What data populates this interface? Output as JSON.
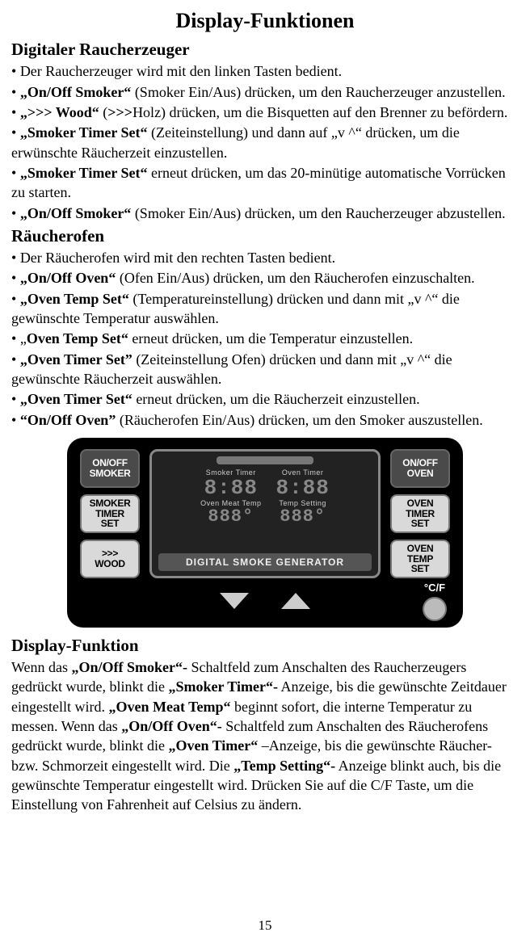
{
  "page_number": "15",
  "heading_main": "Display-Funktionen",
  "section1": {
    "title": "Digitaler Raucherzeuger",
    "bullets": [
      {
        "plain": "Der Raucherzeuger wird mit den linken Tasten bedient."
      },
      {
        "lead": "„On/Off Smoker“",
        "rest": " (Smoker Ein/Aus) drücken, um den Raucherzeuger anzustellen."
      },
      {
        "lead": "„>>> Wood“",
        "rest_a": " (",
        "bold_mid": ">>>",
        "rest_b": "Holz) drücken, um die Bisquetten auf den Brenner zu befördern."
      },
      {
        "lead": "„Smoker Timer Set“",
        "rest": " (Zeiteinstellung) und dann auf „v ^“ drücken, um die erwünschte  Räucherzeit einzustellen."
      },
      {
        "lead": "„Smoker Timer Set“",
        "rest": " erneut drücken, um das 20-minütige automatische Vorrücken zu starten."
      },
      {
        "lead": "„On/Off Smoker“",
        "rest": " (Smoker Ein/Aus) drücken, um den Raucherzeuger abzustellen."
      }
    ]
  },
  "section2": {
    "title": "Räucherofen",
    "bullets": [
      {
        "plain": "Der Räucherofen wird mit den rechten Tasten bedient."
      },
      {
        "lead": "„On/Off Oven“",
        "rest": " (Ofen Ein/Aus) drücken, um den Räucherofen einzuschalten."
      },
      {
        "lead": " „Oven Temp Set“",
        "rest": " (Temperatureinstellung) drücken und dann mit  „v ^“  die gewünschte Temperatur auswählen."
      },
      {
        "lead_plain": "„",
        "lead": "Oven Temp Set“",
        "rest": " erneut drücken, um die Temperatur einzustellen."
      },
      {
        "lead": "„Oven Timer Set”",
        "rest": " (Zeiteinstellung Ofen) drücken und dann mit  „v ^“ die gewünschte Räucherzeit auswählen."
      },
      {
        "lead": "„Oven Timer Set“",
        "rest": " erneut drücken, um die Räucherzeit einzustellen."
      },
      {
        "lead": "“On/Off Oven”",
        "rest": " (Räucherofen Ein/Aus) drücken, um den Smoker auszustellen."
      }
    ]
  },
  "panel": {
    "left_buttons": [
      {
        "l1": "ON/OFF",
        "l2": "SMOKER",
        "dark": true
      },
      {
        "l1": "SMOKER",
        "l2": "TIMER",
        "l3": "SET"
      },
      {
        "l1": ">>>",
        "l2": "WOOD"
      }
    ],
    "right_buttons": [
      {
        "l1": "ON/OFF",
        "l2": "OVEN",
        "dark": true
      },
      {
        "l1": "OVEN",
        "l2": "TIMER",
        "l3": "SET"
      },
      {
        "l1": "OVEN",
        "l2": "TEMP",
        "l3": "SET"
      }
    ],
    "screen": {
      "top_left_label": "Smoker   Timer",
      "top_left_seg": "8:88",
      "bot_left_label": "Oven Meat   Temp",
      "bot_left_seg": "888°",
      "top_right_label": "Oven   Timer",
      "top_right_seg": "8:88",
      "bot_right_label": "Temp   Setting",
      "bot_right_seg": "888°",
      "bar": "DIGITAL SMOKE GENERATOR"
    },
    "cf_label": "°C/F"
  },
  "section3": {
    "title": "Display-Funktion",
    "pre1": "Wenn das ",
    "b1": "„On/Off Smoker“-",
    "t2": " Schaltfeld zum Anschalten des Raucherzeugers gedrückt wurde, blinkt die ",
    "b2": "„Smoker Timer“-",
    "t3": " Anzeige, bis die gewünschte Zeitdauer eingestellt wird. ",
    "b3": "„Oven Meat Temp“",
    "t4": " beginnt sofort, die interne Temperatur zu messen. Wenn das ",
    "b4": "„On/Off Oven“-",
    "t5": " Schaltfeld zum Anschalten des Räucherofens gedrückt wurde, blinkt die ",
    "b5": "„Oven Timer“",
    "t6": " –Anzeige, bis die gewünschte Räucher- bzw. Schmorzeit eingestellt wird. Die ",
    "b6": "„Temp Setting“-",
    "t7": " Anzeige blinkt auch, bis die gewünschte Temperatur eingestellt wird. Drücken Sie auf die C/F Taste, um die Einstellung von Fahrenheit auf Celsius zu ändern."
  }
}
